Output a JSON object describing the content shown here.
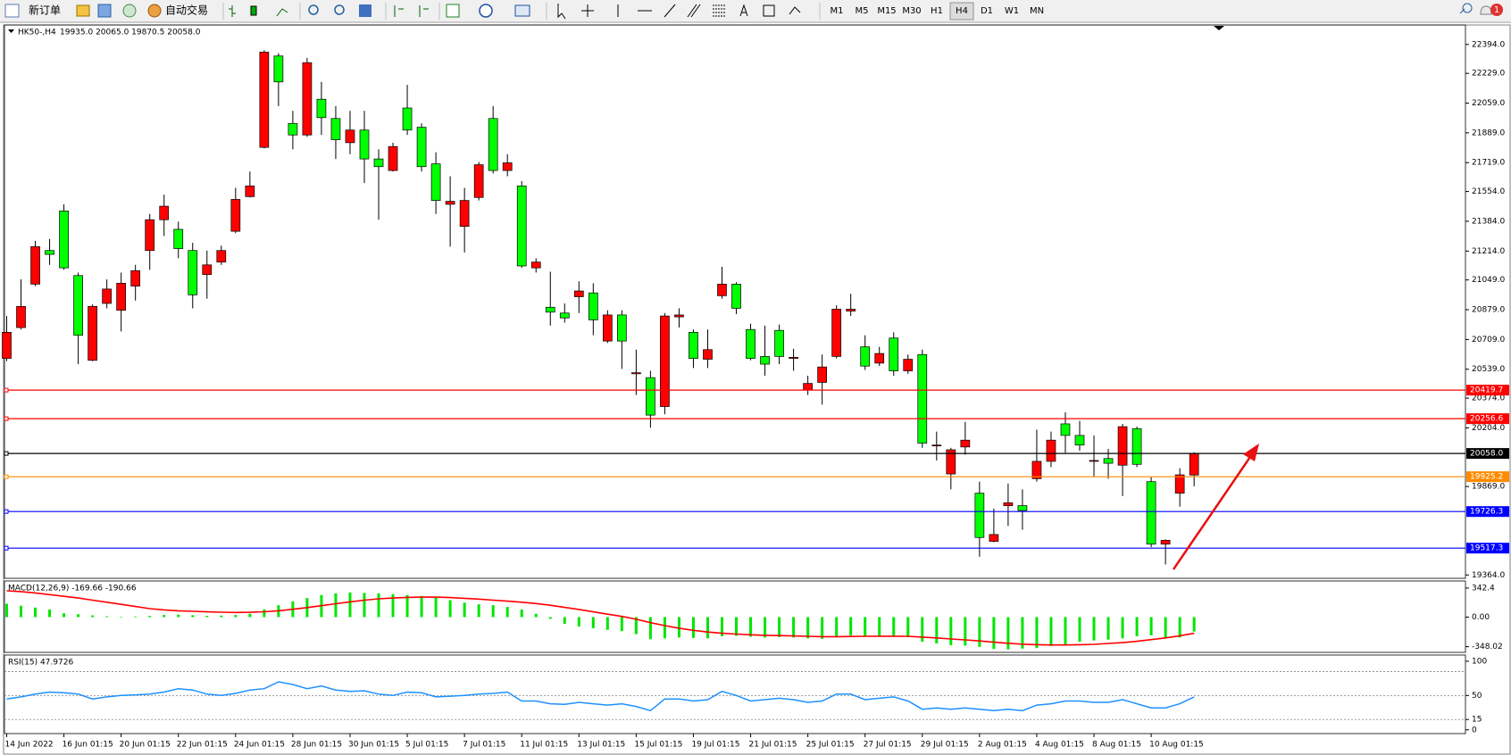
{
  "toolbar": {
    "new_order": "新订单",
    "auto_trading": "自动交易",
    "timeframes": [
      "M1",
      "M5",
      "M15",
      "M30",
      "H1",
      "H4",
      "D1",
      "W1",
      "MN"
    ],
    "selected_timeframe": "H4",
    "notifications": 1
  },
  "chart_data": [
    {
      "type": "candlestick",
      "title": "HK50-,H4",
      "ohlc": "19935.0 20065.0 19870.5 20058.0",
      "up_color": "#ff0000",
      "down_color": "#00ff00",
      "categories": [
        "14 Jun 2022",
        null,
        null,
        null,
        "16 Jun 01:15",
        null,
        null,
        null,
        "20 Jun 01:15",
        null,
        null,
        null,
        "22 Jun 01:15",
        null,
        null,
        null,
        "24 Jun 01:15",
        null,
        null,
        null,
        "28 Jun 01:15",
        null,
        null,
        null,
        "30 Jun 01:15",
        null,
        null,
        null,
        "5 Jul 01:15",
        null,
        null,
        null,
        "7 Jul 01:15",
        null,
        null,
        null,
        "11 Jul 01:15",
        null,
        null,
        null,
        "13 Jul 01:15",
        null,
        null,
        null,
        "15 Jul 01:15",
        null,
        null,
        null,
        "19 Jul 01:15",
        null,
        null,
        null,
        "21 Jul 01:15",
        null,
        null,
        null,
        "25 Jul 01:15",
        null,
        null,
        null,
        "27 Jul 01:15",
        null,
        null,
        null,
        "29 Jul 01:15",
        null,
        null,
        null,
        "2 Aug 01:15",
        null,
        null,
        null,
        "4 Aug 01:15",
        null,
        null,
        null,
        "8 Aug 01:15",
        null,
        null,
        null,
        "10 Aug 01:15",
        null,
        null,
        null
      ],
      "open": [
        20601,
        20777,
        21025,
        21217,
        21443,
        21074,
        20590,
        20915,
        20876,
        21014,
        21217,
        21393,
        21338,
        21217,
        21080,
        21151,
        21327,
        21525,
        21806,
        22328,
        21943,
        21877,
        22081,
        21971,
        21833,
        21905,
        21740,
        21674,
        22031,
        21921,
        21712,
        21481,
        21355,
        21520,
        21971,
        21674,
        21586,
        21118,
        20893,
        20860,
        20953,
        20975,
        20700,
        20849,
        20513,
        20491,
        20326,
        20838,
        20750,
        20596,
        20959,
        21025,
        20766,
        20612,
        20761,
        20601,
        20420,
        20464,
        20612,
        20871,
        20667,
        20574,
        20717,
        20530,
        20623,
        20101,
        19941,
        20095,
        19831,
        19556,
        19760,
        19760,
        19914,
        20013,
        20227,
        20161,
        20013,
        20029,
        19991,
        20200,
        19897,
        19540,
        19831,
        19935
      ],
      "high": [
        20843,
        21052,
        21272,
        21283,
        21481,
        21091,
        20909,
        21052,
        21091,
        21135,
        21426,
        21536,
        21382,
        21261,
        21217,
        21245,
        21575,
        21668,
        22361,
        22344,
        22015,
        22317,
        22180,
        22042,
        22015,
        22015,
        21795,
        21833,
        22163,
        21943,
        21778,
        21641,
        21575,
        21723,
        22042,
        21767,
        21613,
        21173,
        21096,
        20915,
        21041,
        21030,
        20876,
        20876,
        20651,
        20530,
        20860,
        20887,
        20766,
        20766,
        21124,
        21036,
        20799,
        20788,
        20794,
        20656,
        20502,
        20623,
        20904,
        20970,
        20733,
        20667,
        20750,
        20623,
        20651,
        20183,
        20090,
        20238,
        19897,
        19743,
        19886,
        19853,
        20194,
        20183,
        20293,
        20244,
        20161,
        20084,
        20227,
        20211,
        19925,
        19567,
        19974,
        20065
      ],
      "low": [
        20585,
        20766,
        21014,
        21135,
        21107,
        20568,
        20585,
        20887,
        20755,
        20931,
        21107,
        21300,
        21173,
        20887,
        20942,
        21135,
        21316,
        21520,
        21800,
        22042,
        21795,
        21866,
        21877,
        21740,
        21767,
        21602,
        21393,
        21668,
        21877,
        21668,
        21426,
        21239,
        21206,
        21503,
        21657,
        21641,
        21118,
        21091,
        20788,
        20805,
        20860,
        20733,
        20689,
        20541,
        20392,
        20205,
        20282,
        20777,
        20546,
        20546,
        20942,
        20854,
        20590,
        20502,
        20568,
        20530,
        20392,
        20337,
        20601,
        20843,
        20535,
        20557,
        20502,
        20513,
        20090,
        20018,
        19853,
        20051,
        19468,
        19551,
        19644,
        19622,
        19897,
        19980,
        20062,
        20073,
        19925,
        19914,
        19815,
        19980,
        19523,
        19424,
        19754,
        19870.5
      ],
      "close": [
        20750,
        20898,
        21239,
        21195,
        21118,
        20733,
        20898,
        20997,
        21030,
        21102,
        21393,
        21470,
        21228,
        20964,
        21135,
        21217,
        21509,
        21586,
        22350,
        22180,
        21877,
        22290,
        21976,
        21850,
        21905,
        21740,
        21696,
        21811,
        21905,
        21696,
        21503,
        21498,
        21503,
        21707,
        21674,
        21718,
        21129,
        21151,
        20865,
        20832,
        20986,
        20821,
        20849,
        20700,
        20519,
        20277,
        20843,
        20849,
        20601,
        20651,
        21025,
        20887,
        20601,
        20568,
        20612,
        20607,
        20458,
        20552,
        20882,
        20882,
        20557,
        20629,
        20530,
        20596,
        20117,
        20106,
        20079,
        20134,
        19578,
        19595,
        19776,
        19732,
        20013,
        20134,
        20161,
        20106,
        20018,
        20002,
        20211,
        19996,
        19540,
        19562,
        19936,
        20058
      ],
      "ylim": [
        19345,
        22500
      ],
      "yticks": [
        {
          "value": 22394,
          "label": "22394.0"
        },
        {
          "value": 22229,
          "label": "22229.0"
        },
        {
          "value": 22059,
          "label": "22059.0"
        },
        {
          "value": 21889,
          "label": "21889.0"
        },
        {
          "value": 21719,
          "label": "21719.0"
        },
        {
          "value": 21554,
          "label": "21554.0"
        },
        {
          "value": 21384,
          "label": "21384.0"
        },
        {
          "value": 21214,
          "label": "21214.0"
        },
        {
          "value": 21049,
          "label": "21049.0"
        },
        {
          "value": 20879,
          "label": "20879.0"
        },
        {
          "value": 20709,
          "label": "20709.0"
        },
        {
          "value": 20539,
          "label": "20539.0"
        },
        {
          "value": 20374,
          "label": "20374.0"
        },
        {
          "value": 20204,
          "label": "20204.0"
        },
        {
          "value": 19869,
          "label": "19869.0"
        },
        {
          "value": 19364,
          "label": "19364.0"
        }
      ],
      "levels": [
        {
          "value": 20419.7,
          "label": "20419.7",
          "color": "#ff0000"
        },
        {
          "value": 20256.6,
          "label": "20256.6",
          "color": "#ff0000"
        },
        {
          "value": 20058,
          "label": "20058.0",
          "color": "#000000"
        },
        {
          "value": 19925.2,
          "label": "19925.2",
          "color": "#ff8c00"
        },
        {
          "value": 19726.3,
          "label": "19726.3",
          "color": "#0000ff"
        },
        {
          "value": 19517.3,
          "label": "19517.3",
          "color": "#0000ff"
        }
      ]
    },
    {
      "type": "macd",
      "title": "MACD(12,26,9) -169.66 -190.66",
      "histogram_color": "#00e600",
      "signal_color": "#ff0000",
      "histogram": [
        157,
        134,
        112,
        90,
        45,
        34,
        20,
        10,
        5,
        8,
        15,
        25,
        30,
        22,
        15,
        18,
        25,
        40,
        90,
        140,
        185,
        225,
        260,
        280,
        290,
        285,
        280,
        270,
        260,
        250,
        230,
        200,
        170,
        150,
        140,
        120,
        90,
        40,
        -20,
        -80,
        -110,
        -130,
        -150,
        -165,
        -200,
        -260,
        -250,
        -240,
        -245,
        -250,
        -225,
        -220,
        -230,
        -240,
        -235,
        -240,
        -250,
        -255,
        -230,
        -215,
        -220,
        -225,
        -230,
        -235,
        -290,
        -310,
        -330,
        -335,
        -350,
        -375,
        -380,
        -370,
        -365,
        -340,
        -320,
        -290,
        -275,
        -265,
        -250,
        -225,
        -215,
        -250,
        -240,
        -169.66
      ],
      "signal": [
        310,
        300,
        285,
        265,
        245,
        225,
        200,
        175,
        150,
        125,
        100,
        85,
        75,
        68,
        62,
        58,
        55,
        57,
        63,
        75,
        92,
        112,
        135,
        158,
        180,
        200,
        215,
        225,
        232,
        235,
        235,
        230,
        222,
        212,
        200,
        188,
        175,
        160,
        140,
        115,
        90,
        62,
        35,
        8,
        -25,
        -65,
        -100,
        -130,
        -155,
        -175,
        -190,
        -200,
        -208,
        -214,
        -218,
        -222,
        -226,
        -230,
        -230,
        -228,
        -226,
        -225,
        -225,
        -226,
        -235,
        -245,
        -257,
        -268,
        -280,
        -295,
        -308,
        -318,
        -325,
        -328,
        -328,
        -325,
        -320,
        -310,
        -300,
        -285,
        -265,
        -245,
        -220,
        -190.66
      ],
      "ylim": [
        -415,
        415
      ],
      "yticks": [
        342.4,
        {
          "value": 0,
          "label": "0.00"
        },
        -348.02
      ]
    },
    {
      "type": "line",
      "title": "RSI(15) 47.9726",
      "color": "#1e90ff",
      "values": [
        45,
        48,
        52,
        55,
        54,
        52,
        45,
        48,
        50,
        51,
        52,
        55,
        60,
        58,
        52,
        50,
        53,
        58,
        60,
        70,
        66,
        60,
        64,
        58,
        56,
        57,
        52,
        50,
        55,
        54,
        48,
        49,
        50,
        52,
        53,
        55,
        42,
        42,
        38,
        37,
        40,
        38,
        36,
        38,
        34,
        28,
        45,
        45,
        42,
        44,
        56,
        50,
        42,
        44,
        46,
        44,
        40,
        42,
        52,
        52,
        44,
        46,
        48,
        42,
        30,
        32,
        30,
        32,
        30,
        28,
        30,
        28,
        36,
        38,
        42,
        42,
        40,
        40,
        44,
        38,
        32,
        32,
        38,
        47.9726
      ],
      "ylim": [
        -5.5,
        107.7
      ],
      "yticks": [
        100,
        50,
        15,
        0
      ],
      "levels": [
        85,
        50,
        15
      ]
    }
  ]
}
